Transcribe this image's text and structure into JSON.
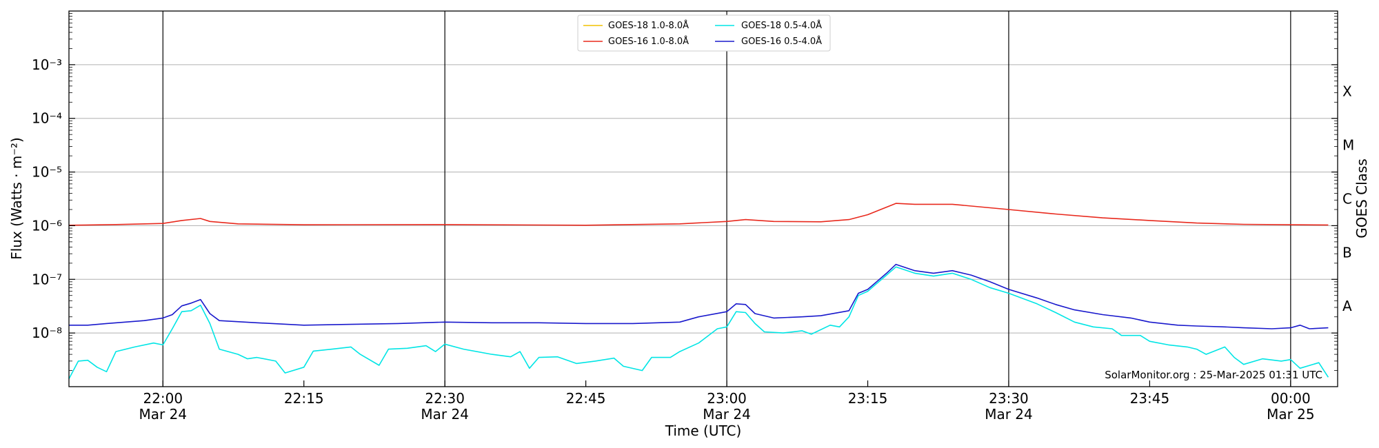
{
  "chart_data": {
    "type": "line",
    "xlabel": "Time (UTC)",
    "ylabel": "Flux (Watts · m⁻²)",
    "right_label": "GOES Class",
    "y_scale": "log",
    "ylim": [
      "1e-9",
      "1e-2"
    ],
    "y_ticks": [
      {
        "value": "1e-8",
        "label": "10⁻⁸"
      },
      {
        "value": "1e-7",
        "label": "10⁻⁷"
      },
      {
        "value": "1e-6",
        "label": "10⁻⁶"
      },
      {
        "value": "1e-5",
        "label": "10⁻⁵"
      },
      {
        "value": "1e-4",
        "label": "10⁻⁴"
      },
      {
        "value": "1e-3",
        "label": "10⁻³"
      }
    ],
    "goes_classes": [
      {
        "label": "A",
        "value": "1e-8"
      },
      {
        "label": "B",
        "value": "1e-7"
      },
      {
        "label": "C",
        "value": "1e-6"
      },
      {
        "label": "M",
        "value": "1e-5"
      },
      {
        "label": "X",
        "value": "1e-4"
      }
    ],
    "xlim": [
      "2025-03-24 21:50",
      "2025-03-25 00:05"
    ],
    "x_ticks": [
      {
        "time": "2025-03-24 22:00",
        "label": "22:00",
        "sublabel": "Mar 24",
        "vline": true
      },
      {
        "time": "2025-03-24 22:15",
        "label": "22:15",
        "sublabel": "",
        "vline": false
      },
      {
        "time": "2025-03-24 22:30",
        "label": "22:30",
        "sublabel": "Mar 24",
        "vline": true
      },
      {
        "time": "2025-03-24 22:45",
        "label": "22:45",
        "sublabel": "",
        "vline": false
      },
      {
        "time": "2025-03-24 23:00",
        "label": "23:00",
        "sublabel": "Mar 24",
        "vline": true
      },
      {
        "time": "2025-03-24 23:15",
        "label": "23:15",
        "sublabel": "",
        "vline": false
      },
      {
        "time": "2025-03-24 23:30",
        "label": "23:30",
        "sublabel": "Mar 24",
        "vline": true
      },
      {
        "time": "2025-03-24 23:45",
        "label": "23:45",
        "sublabel": "",
        "vline": false
      },
      {
        "time": "2025-03-25 00:00",
        "label": "00:00",
        "sublabel": "Mar 25",
        "vline": true
      }
    ],
    "grid": "horizontal",
    "legend_position": "top-center",
    "annotation": "SolarMonitor.org : 25-Mar-2025 01:31 UTC",
    "series": [
      {
        "name": "GOES-18 1.0-8.0Å",
        "color": "#f2c200",
        "points": []
      },
      {
        "name": "GOES-16 1.0-8.0Å",
        "color": "#e8281c",
        "points": [
          [
            "2025-03-24 21:50",
            "1.02e-6"
          ],
          [
            "2025-03-24 21:55",
            "1.05e-6"
          ],
          [
            "2025-03-24 22:00",
            "1.10e-6"
          ],
          [
            "2025-03-24 22:02",
            "1.25e-6"
          ],
          [
            "2025-03-24 22:04",
            "1.36e-6"
          ],
          [
            "2025-03-24 22:05",
            "1.20e-6"
          ],
          [
            "2025-03-24 22:08",
            "1.08e-6"
          ],
          [
            "2025-03-24 22:15",
            "1.04e-6"
          ],
          [
            "2025-03-24 22:30",
            "1.05e-6"
          ],
          [
            "2025-03-24 22:45",
            "1.02e-6"
          ],
          [
            "2025-03-24 22:55",
            "1.08e-6"
          ],
          [
            "2025-03-24 23:00",
            "1.20e-6"
          ],
          [
            "2025-03-24 23:02",
            "1.30e-6"
          ],
          [
            "2025-03-24 23:05",
            "1.20e-6"
          ],
          [
            "2025-03-24 23:10",
            "1.18e-6"
          ],
          [
            "2025-03-24 23:13",
            "1.30e-6"
          ],
          [
            "2025-03-24 23:15",
            "1.60e-6"
          ],
          [
            "2025-03-24 23:18",
            "2.60e-6"
          ],
          [
            "2025-03-24 23:20",
            "2.50e-6"
          ],
          [
            "2025-03-24 23:24",
            "2.50e-6"
          ],
          [
            "2025-03-24 23:30",
            "2.00e-6"
          ],
          [
            "2025-03-24 23:35",
            "1.65e-6"
          ],
          [
            "2025-03-24 23:40",
            "1.40e-6"
          ],
          [
            "2025-03-24 23:45",
            "1.25e-6"
          ],
          [
            "2025-03-24 23:50",
            "1.12e-6"
          ],
          [
            "2025-03-24 23:55",
            "1.06e-6"
          ],
          [
            "2025-03-25 00:00",
            "1.04e-6"
          ],
          [
            "2025-03-25 00:04",
            "1.03e-6"
          ]
        ]
      },
      {
        "name": "GOES-18 0.5-4.0Å",
        "color": "#00e5e5",
        "points": [
          [
            "2025-03-24 21:50",
            "1.4e-9"
          ],
          [
            "2025-03-24 21:51",
            "3.0e-9"
          ],
          [
            "2025-03-24 21:52",
            "3.1e-9"
          ],
          [
            "2025-03-24 21:53",
            "2.3e-9"
          ],
          [
            "2025-03-24 21:54",
            "1.9e-9"
          ],
          [
            "2025-03-24 21:55",
            "4.5e-9"
          ],
          [
            "2025-03-24 21:57",
            "5.5e-9"
          ],
          [
            "2025-03-24 21:59",
            "6.5e-9"
          ],
          [
            "2025-03-24 22:00",
            "6.0e-9"
          ],
          [
            "2025-03-24 22:01",
            "1.2e-8"
          ],
          [
            "2025-03-24 22:02",
            "2.5e-8"
          ],
          [
            "2025-03-24 22:03",
            "2.6e-8"
          ],
          [
            "2025-03-24 22:04",
            "3.3e-8"
          ],
          [
            "2025-03-24 22:05",
            "1.5e-8"
          ],
          [
            "2025-03-24 22:06",
            "5.0e-9"
          ],
          [
            "2025-03-24 22:08",
            "4.0e-9"
          ],
          [
            "2025-03-24 22:09",
            "3.3e-9"
          ],
          [
            "2025-03-24 22:10",
            "3.5e-9"
          ],
          [
            "2025-03-24 22:12",
            "3.0e-9"
          ],
          [
            "2025-03-24 22:13",
            "1.8e-9"
          ],
          [
            "2025-03-24 22:15",
            "2.3e-9"
          ],
          [
            "2025-03-24 22:16",
            "4.6e-9"
          ],
          [
            "2025-03-24 22:18",
            "5.0e-9"
          ],
          [
            "2025-03-24 22:20",
            "5.5e-9"
          ],
          [
            "2025-03-24 22:21",
            "4.0e-9"
          ],
          [
            "2025-03-24 22:23",
            "2.5e-9"
          ],
          [
            "2025-03-24 22:24",
            "5.0e-9"
          ],
          [
            "2025-03-24 22:26",
            "5.2e-9"
          ],
          [
            "2025-03-24 22:28",
            "5.8e-9"
          ],
          [
            "2025-03-24 22:29",
            "4.5e-9"
          ],
          [
            "2025-03-24 22:30",
            "6.2e-9"
          ],
          [
            "2025-03-24 22:32",
            "5.0e-9"
          ],
          [
            "2025-03-24 22:35",
            "4.0e-9"
          ],
          [
            "2025-03-24 22:37",
            "3.6e-9"
          ],
          [
            "2025-03-24 22:38",
            "4.5e-9"
          ],
          [
            "2025-03-24 22:39",
            "2.2e-9"
          ],
          [
            "2025-03-24 22:40",
            "3.5e-9"
          ],
          [
            "2025-03-24 22:42",
            "3.6e-9"
          ],
          [
            "2025-03-24 22:44",
            "2.7e-9"
          ],
          [
            "2025-03-24 22:46",
            "3.0e-9"
          ],
          [
            "2025-03-24 22:48",
            "3.4e-9"
          ],
          [
            "2025-03-24 22:49",
            "2.4e-9"
          ],
          [
            "2025-03-24 22:51",
            "2.0e-9"
          ],
          [
            "2025-03-24 22:52",
            "3.5e-9"
          ],
          [
            "2025-03-24 22:54",
            "3.5e-9"
          ],
          [
            "2025-03-24 22:55",
            "4.5e-9"
          ],
          [
            "2025-03-24 22:57",
            "6.5e-9"
          ],
          [
            "2025-03-24 22:59",
            "1.2e-8"
          ],
          [
            "2025-03-24 23:00",
            "1.3e-8"
          ],
          [
            "2025-03-24 23:01",
            "2.5e-8"
          ],
          [
            "2025-03-24 23:02",
            "2.4e-8"
          ],
          [
            "2025-03-24 23:03",
            "1.5e-8"
          ],
          [
            "2025-03-24 23:04",
            "1.05e-8"
          ],
          [
            "2025-03-24 23:06",
            "1.0e-8"
          ],
          [
            "2025-03-24 23:08",
            "1.1e-8"
          ],
          [
            "2025-03-24 23:09",
            "9.5e-9"
          ],
          [
            "2025-03-24 23:11",
            "1.4e-8"
          ],
          [
            "2025-03-24 23:12",
            "1.3e-8"
          ],
          [
            "2025-03-24 23:13",
            "2.0e-8"
          ],
          [
            "2025-03-24 23:14",
            "5.0e-8"
          ],
          [
            "2025-03-24 23:15",
            "6.0e-8"
          ],
          [
            "2025-03-24 23:17",
            "1.2e-7"
          ],
          [
            "2025-03-24 23:18",
            "1.7e-7"
          ],
          [
            "2025-03-24 23:20",
            "1.3e-7"
          ],
          [
            "2025-03-24 23:22",
            "1.15e-7"
          ],
          [
            "2025-03-24 23:24",
            "1.3e-7"
          ],
          [
            "2025-03-24 23:26",
            "1.0e-7"
          ],
          [
            "2025-03-24 23:28",
            "7.0e-8"
          ],
          [
            "2025-03-24 23:30",
            "5.5e-8"
          ],
          [
            "2025-03-24 23:33",
            "3.5e-8"
          ],
          [
            "2025-03-24 23:35",
            "2.4e-8"
          ],
          [
            "2025-03-24 23:37",
            "1.6e-8"
          ],
          [
            "2025-03-24 23:39",
            "1.3e-8"
          ],
          [
            "2025-03-24 23:41",
            "1.2e-8"
          ],
          [
            "2025-03-24 23:42",
            "9.0e-9"
          ],
          [
            "2025-03-24 23:44",
            "9.0e-9"
          ],
          [
            "2025-03-24 23:45",
            "7.0e-9"
          ],
          [
            "2025-03-24 23:47",
            "6.0e-9"
          ],
          [
            "2025-03-24 23:49",
            "5.5e-9"
          ],
          [
            "2025-03-24 23:50",
            "5.0e-9"
          ],
          [
            "2025-03-24 23:51",
            "4.0e-9"
          ],
          [
            "2025-03-24 23:53",
            "5.5e-9"
          ],
          [
            "2025-03-24 23:54",
            "3.5e-9"
          ],
          [
            "2025-03-24 23:55",
            "2.6e-9"
          ],
          [
            "2025-03-24 23:57",
            "3.3e-9"
          ],
          [
            "2025-03-24 23:59",
            "3.0e-9"
          ],
          [
            "2025-03-25 00:00",
            "3.2e-9"
          ],
          [
            "2025-03-25 00:01",
            "2.2e-9"
          ],
          [
            "2025-03-25 00:03",
            "2.8e-9"
          ],
          [
            "2025-03-25 00:04",
            "1.5e-9"
          ]
        ]
      },
      {
        "name": "GOES-16 0.5-4.0Å",
        "color": "#1818cc",
        "points": [
          [
            "2025-03-24 21:50",
            "1.4e-8"
          ],
          [
            "2025-03-24 21:52",
            "1.4e-8"
          ],
          [
            "2025-03-24 21:54",
            "1.5e-8"
          ],
          [
            "2025-03-24 21:56",
            "1.6e-8"
          ],
          [
            "2025-03-24 21:58",
            "1.7e-8"
          ],
          [
            "2025-03-24 22:00",
            "1.9e-8"
          ],
          [
            "2025-03-24 22:01",
            "2.2e-8"
          ],
          [
            "2025-03-24 22:02",
            "3.2e-8"
          ],
          [
            "2025-03-24 22:03",
            "3.6e-8"
          ],
          [
            "2025-03-24 22:04",
            "4.2e-8"
          ],
          [
            "2025-03-24 22:05",
            "2.3e-8"
          ],
          [
            "2025-03-24 22:06",
            "1.7e-8"
          ],
          [
            "2025-03-24 22:10",
            "1.55e-8"
          ],
          [
            "2025-03-24 22:15",
            "1.4e-8"
          ],
          [
            "2025-03-24 22:20",
            "1.45e-8"
          ],
          [
            "2025-03-24 22:25",
            "1.5e-8"
          ],
          [
            "2025-03-24 22:30",
            "1.6e-8"
          ],
          [
            "2025-03-24 22:35",
            "1.55e-8"
          ],
          [
            "2025-03-24 22:40",
            "1.55e-8"
          ],
          [
            "2025-03-24 22:45",
            "1.5e-8"
          ],
          [
            "2025-03-24 22:50",
            "1.5e-8"
          ],
          [
            "2025-03-24 22:55",
            "1.6e-8"
          ],
          [
            "2025-03-24 22:57",
            "2.0e-8"
          ],
          [
            "2025-03-24 23:00",
            "2.5e-8"
          ],
          [
            "2025-03-24 23:01",
            "3.5e-8"
          ],
          [
            "2025-03-24 23:02",
            "3.4e-8"
          ],
          [
            "2025-03-24 23:03",
            "2.3e-8"
          ],
          [
            "2025-03-24 23:05",
            "1.9e-8"
          ],
          [
            "2025-03-24 23:08",
            "2.0e-8"
          ],
          [
            "2025-03-24 23:10",
            "2.1e-8"
          ],
          [
            "2025-03-24 23:13",
            "2.6e-8"
          ],
          [
            "2025-03-24 23:14",
            "5.5e-8"
          ],
          [
            "2025-03-24 23:15",
            "6.5e-8"
          ],
          [
            "2025-03-24 23:17",
            "1.3e-7"
          ],
          [
            "2025-03-24 23:18",
            "1.9e-7"
          ],
          [
            "2025-03-24 23:20",
            "1.45e-7"
          ],
          [
            "2025-03-24 23:22",
            "1.3e-7"
          ],
          [
            "2025-03-24 23:24",
            "1.45e-7"
          ],
          [
            "2025-03-24 23:26",
            "1.2e-7"
          ],
          [
            "2025-03-24 23:28",
            "9.0e-8"
          ],
          [
            "2025-03-24 23:30",
            "6.5e-8"
          ],
          [
            "2025-03-24 23:33",
            "4.5e-8"
          ],
          [
            "2025-03-24 23:35",
            "3.4e-8"
          ],
          [
            "2025-03-24 23:37",
            "2.7e-8"
          ],
          [
            "2025-03-24 23:40",
            "2.2e-8"
          ],
          [
            "2025-03-24 23:43",
            "1.9e-8"
          ],
          [
            "2025-03-24 23:45",
            "1.6e-8"
          ],
          [
            "2025-03-24 23:48",
            "1.4e-8"
          ],
          [
            "2025-03-24 23:50",
            "1.35e-8"
          ],
          [
            "2025-03-24 23:53",
            "1.3e-8"
          ],
          [
            "2025-03-24 23:55",
            "1.25e-8"
          ],
          [
            "2025-03-24 23:58",
            "1.2e-8"
          ],
          [
            "2025-03-25 00:00",
            "1.25e-8"
          ],
          [
            "2025-03-25 00:01",
            "1.4e-8"
          ],
          [
            "2025-03-25 00:02",
            "1.2e-8"
          ],
          [
            "2025-03-25 00:04",
            "1.25e-8"
          ]
        ]
      }
    ]
  }
}
